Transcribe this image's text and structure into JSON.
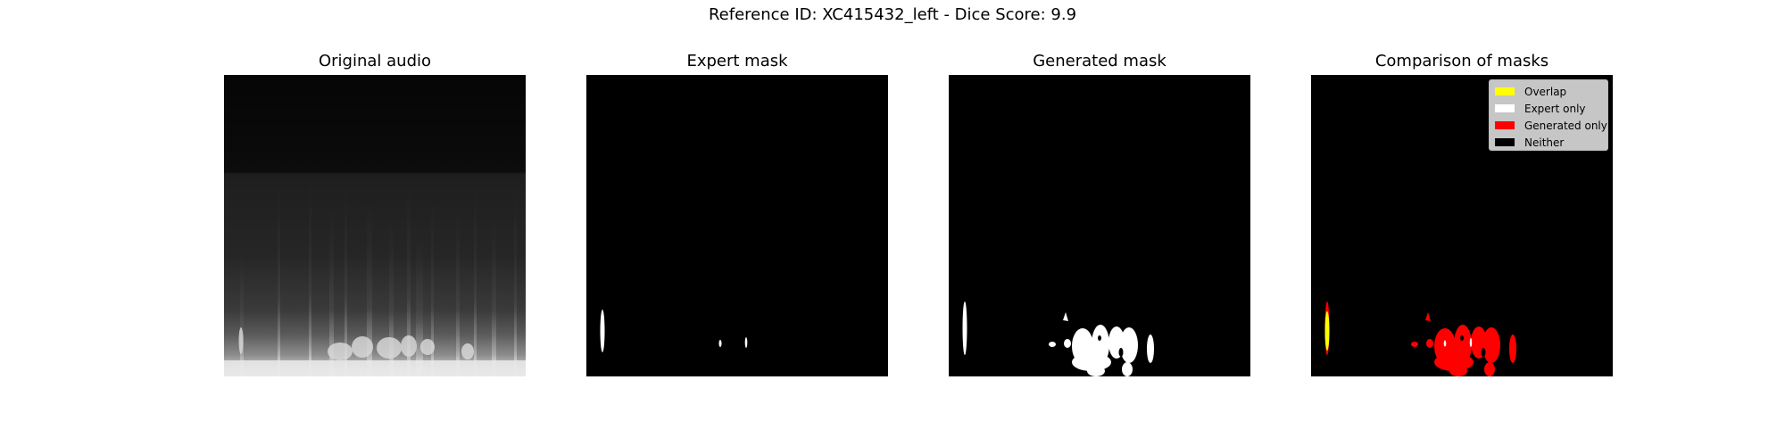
{
  "figure": {
    "title": "Reference ID: XC415432_left - Dice Score: 9.9"
  },
  "panels": [
    {
      "title": "Original audio"
    },
    {
      "title": "Expert mask"
    },
    {
      "title": "Generated mask"
    },
    {
      "title": "Comparison of masks"
    }
  ],
  "legend": {
    "items": [
      {
        "label": "Overlap",
        "color": "#ffff00"
      },
      {
        "label": "Expert only",
        "color": "#ffffff"
      },
      {
        "label": "Generated only",
        "color": "#ff0000"
      },
      {
        "label": "Neither",
        "color": "#000000"
      }
    ]
  },
  "colors": {
    "background": "#000000",
    "mask": "#ffffff",
    "overlap": "#ffff00",
    "generated_only": "#ff0000"
  }
}
